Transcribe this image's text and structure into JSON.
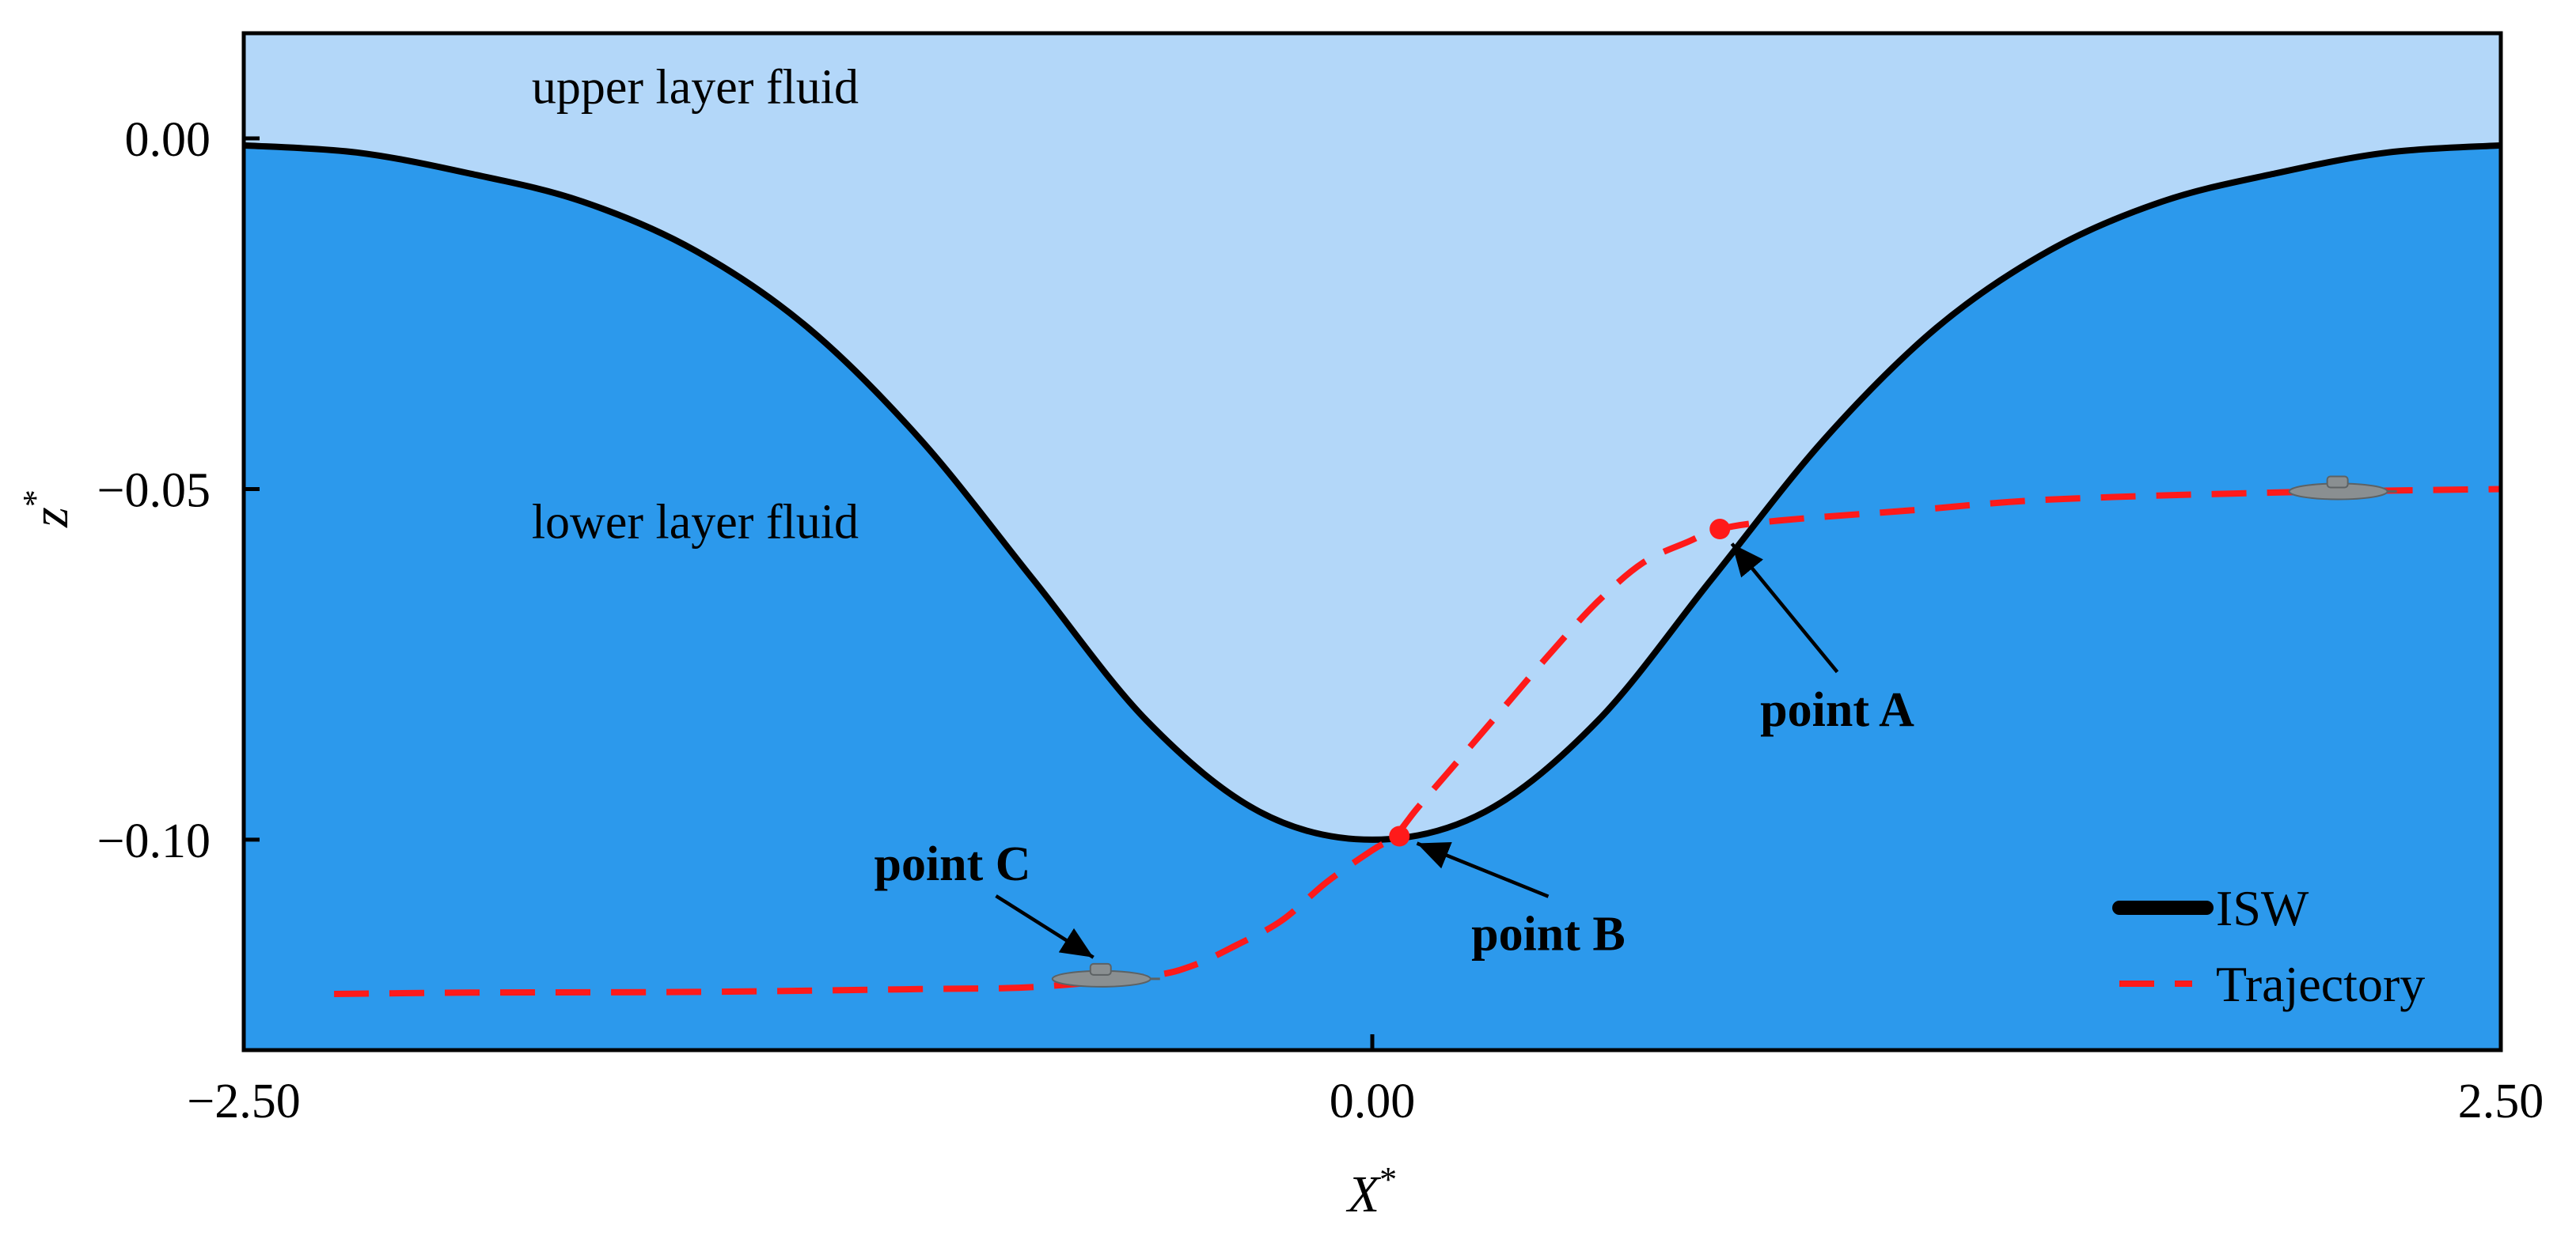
{
  "colors": {
    "upper_fluid": "#b3d7f9",
    "lower_fluid": "#2c99ec",
    "isw_line": "#000000",
    "trajectory": "#ff1a1a",
    "marker": "#ff1a1a",
    "submarine": "#8a8f91"
  },
  "chart_data": {
    "type": "line",
    "xlabel": "X",
    "xlabel_sup": "*",
    "ylabel": "z",
    "ylabel_sup": "*",
    "xlim": [
      -2.5,
      2.5
    ],
    "ylim": [
      -0.13,
      0.015
    ],
    "xticks": [
      {
        "value": -2.5,
        "label": "−2.50"
      },
      {
        "value": 0.0,
        "label": "0.00"
      },
      {
        "value": 2.5,
        "label": "2.50"
      }
    ],
    "yticks": [
      {
        "value": 0.0,
        "label": "0.00"
      },
      {
        "value": -0.05,
        "label": "−0.05"
      },
      {
        "value": -0.1,
        "label": "−0.10"
      }
    ],
    "grid": false,
    "legend_position": "bottom-right",
    "series": [
      {
        "name": "ISW",
        "style": "solid",
        "x": [
          -2.5,
          -2.25,
          -2.0,
          -1.75,
          -1.5,
          -1.25,
          -1.0,
          -0.75,
          -0.5,
          -0.25,
          0.0,
          0.25,
          0.5,
          0.75,
          1.0,
          1.25,
          1.5,
          1.75,
          2.0,
          2.25,
          2.5
        ],
        "y": [
          -0.001,
          -0.002,
          -0.005,
          -0.009,
          -0.016,
          -0.027,
          -0.043,
          -0.063,
          -0.083,
          -0.096,
          -0.1,
          -0.096,
          -0.083,
          -0.063,
          -0.043,
          -0.027,
          -0.016,
          -0.009,
          -0.005,
          -0.002,
          -0.001
        ]
      },
      {
        "name": "Trajectory",
        "style": "dashed",
        "x": [
          -2.3,
          -2.0,
          -1.5,
          -1.0,
          -0.75,
          -0.5,
          -0.4,
          -0.3,
          -0.2,
          -0.1,
          0.0,
          0.05,
          0.1,
          0.2,
          0.3,
          0.4,
          0.5,
          0.6,
          0.7,
          0.77,
          0.9,
          1.2,
          1.5,
          2.0,
          2.5
        ],
        "y": [
          -0.122,
          -0.1218,
          -0.1217,
          -0.1213,
          -0.121,
          -0.1195,
          -0.118,
          -0.115,
          -0.1115,
          -0.106,
          -0.1015,
          -0.0995,
          -0.0955,
          -0.088,
          -0.0805,
          -0.073,
          -0.066,
          -0.0605,
          -0.0575,
          -0.0557,
          -0.0545,
          -0.053,
          -0.0515,
          -0.0505,
          -0.05
        ]
      }
    ],
    "annotations": [
      {
        "label": "upper layer fluid",
        "x": -1.5,
        "y": 0.005
      },
      {
        "label": "lower layer fluid",
        "x": -1.5,
        "y": -0.057
      },
      {
        "label": "point A",
        "x": 0.77,
        "y": -0.0557,
        "text_x": 1.03,
        "text_y": -0.0815
      },
      {
        "label": "point B",
        "x": 0.06,
        "y": -0.0995,
        "text_x": 0.39,
        "text_y": -0.1135
      },
      {
        "label": "point C",
        "x": -0.6,
        "y": -0.1175,
        "text_x": -0.93,
        "text_y": -0.1035
      }
    ],
    "submarines": [
      {
        "x": -0.6,
        "y": -0.1195
      },
      {
        "x": 2.14,
        "y": -0.05
      }
    ]
  }
}
